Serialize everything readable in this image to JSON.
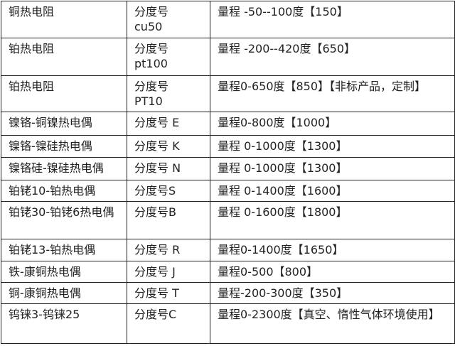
{
  "table": {
    "rows": [
      [
        "铜热电阻",
        "分度号\ncu50",
        "量程 -50--100度【150】"
      ],
      [
        "铂热电阻",
        "分度号\npt100",
        "量程 -200--420度【650】"
      ],
      [
        "铂热电阻",
        "分度号\nPT10",
        "量程0-650度【850】【非标产品，定制】"
      ],
      [
        "镍铬-铜镍热电偶",
        "分度号 E",
        "量程0-800度【1000】"
      ],
      [
        "镍铬-镍硅热电偶",
        "分度号 K",
        "量程 0-1000度【1300】"
      ],
      [
        "镍铬硅-镍硅热电偶",
        "分度号 N",
        "量程 0-1000度【1300】"
      ],
      [
        "铂铑10-铂热电偶",
        "分度号S",
        "量程 0-1400度【1600】"
      ],
      [
        "铂铑30-铂铑6热电偶",
        "分度号B",
        "量程 0-1600度【1800】"
      ],
      [
        "铂铑13-铂热电偶",
        "分度号 R",
        "量程0-1400度【1650】"
      ],
      [
        "铁-康铜热电偶",
        "分度号 J",
        "量程0-500【800】"
      ],
      [
        "铜-康铜热电偶",
        "分度号 T",
        "量程-200-300度【350】"
      ],
      [
        "钨铼3-钨铼25",
        "分度号C",
        "量程0-2300度【真空、惰性气体环境使用】"
      ]
    ]
  }
}
